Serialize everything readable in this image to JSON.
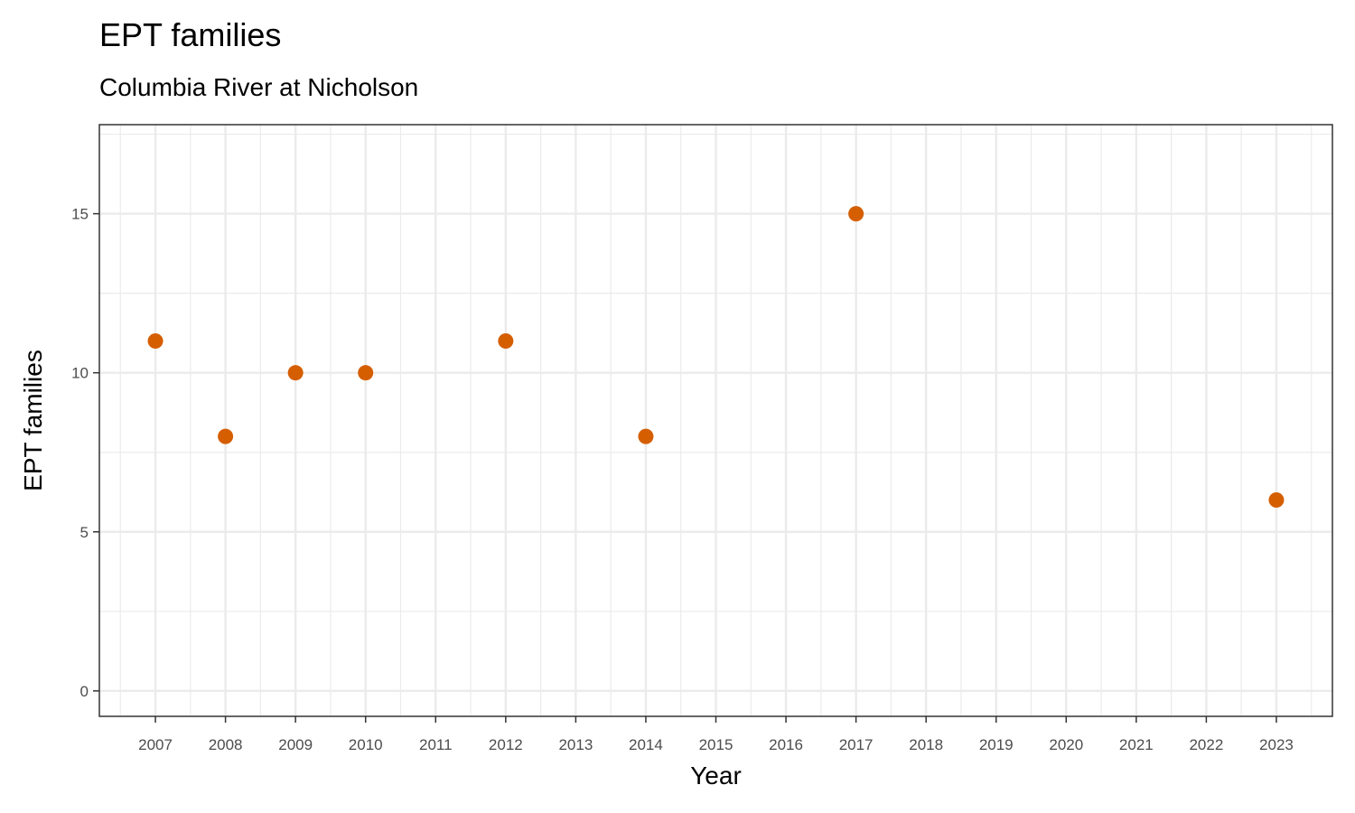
{
  "chart_data": {
    "type": "scatter",
    "title": "EPT families",
    "subtitle": "Columbia River at Nicholson",
    "xlabel": "Year",
    "ylabel": "EPT families",
    "x_ticks": [
      "2007",
      "2008",
      "2009",
      "2010",
      "2011",
      "2012",
      "2013",
      "2014",
      "2015",
      "2016",
      "2017",
      "2018",
      "2019",
      "2020",
      "2021",
      "2022",
      "2023"
    ],
    "y_ticks": [
      0,
      5,
      10,
      15
    ],
    "xlim": [
      2006.2,
      2023.8
    ],
    "ylim": [
      -0.8,
      17.8
    ],
    "grid": true,
    "legend": "none",
    "point_color": "#D55E00",
    "series": [
      {
        "x": [
          2007,
          2008,
          2009,
          2010,
          2012,
          2014,
          2017,
          2023
        ],
        "y": [
          11,
          8,
          10,
          10,
          11,
          8,
          15,
          6
        ]
      }
    ]
  }
}
